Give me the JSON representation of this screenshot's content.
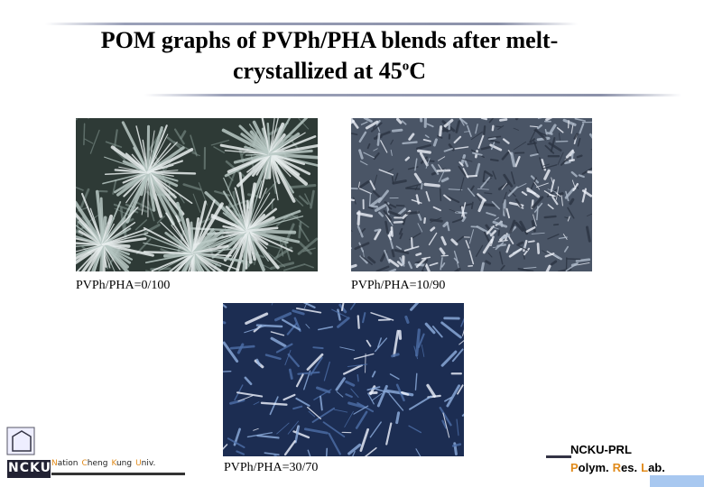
{
  "title": {
    "line1": "POM graphs of PVPh/PHA blends after melt-",
    "line2": "crystallized at 45",
    "degree": "o",
    "unit": "C"
  },
  "images": [
    {
      "caption": "PVPh/PHA=0/100"
    },
    {
      "caption": "PVPh/PHA=10/90"
    },
    {
      "caption": "PVPh/PHA=30/70"
    }
  ],
  "footer": {
    "logo": "NCKU",
    "university": [
      "Nation",
      "Cheng",
      "Kung",
      "Univ."
    ],
    "lab_code": "NCKU-PRL",
    "lab_name": [
      "Polym.",
      "Res.",
      "Lab."
    ]
  }
}
